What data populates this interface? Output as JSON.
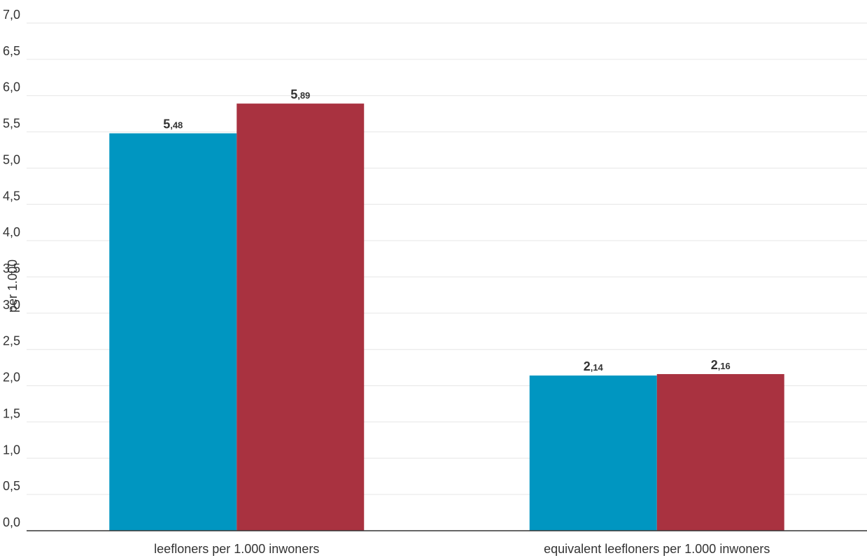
{
  "chart_data": {
    "type": "bar",
    "categories": [
      "leefloners per 1.000 inwoners",
      "equivalent leefloners per 1.000 inwoners"
    ],
    "series": [
      {
        "values": [
          5.48,
          2.14
        ],
        "color": "#0096c1"
      },
      {
        "values": [
          5.89,
          2.16
        ],
        "color": "#a93240"
      }
    ],
    "data_labels": [
      [
        "5,48",
        "2,14"
      ],
      [
        "5,89",
        "2,16"
      ]
    ],
    "ylabel": "per 1.000",
    "ylim": [
      0,
      7
    ],
    "yticks": [
      "0,0",
      "0,5",
      "1,0",
      "1,5",
      "2,0",
      "2,5",
      "3,0",
      "3,5",
      "4,0",
      "4,5",
      "5,0",
      "5,5",
      "6,0",
      "6,5",
      "7,0"
    ],
    "grid": true,
    "legend": "none"
  }
}
